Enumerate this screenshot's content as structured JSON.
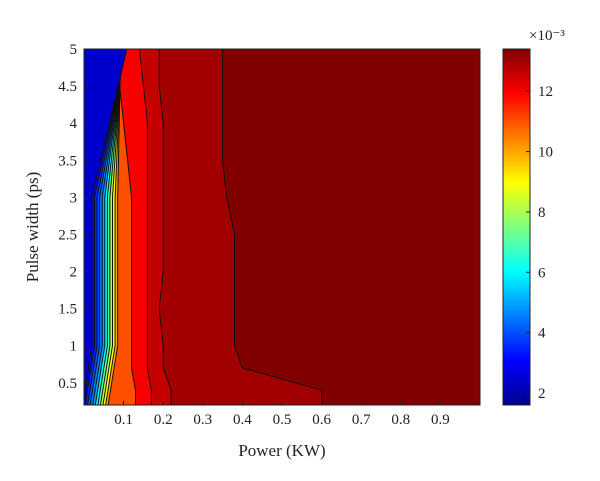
{
  "chart_data": {
    "type": "heatmap",
    "subtype": "filled-contour",
    "xlabel": "Power (KW)",
    "ylabel": "Pulse width (ps)",
    "xlim": [
      0,
      1.0
    ],
    "ylim": [
      0.2,
      5
    ],
    "x_ticks": [
      "0.1",
      "0.2",
      "0.3",
      "0.4",
      "0.5",
      "0.6",
      "0.7",
      "0.8",
      "0.9"
    ],
    "y_ticks": [
      "0.5",
      "1",
      "1.5",
      "2",
      "2.5",
      "3",
      "3.5",
      "4",
      "4.5",
      "5"
    ],
    "colorbar": {
      "label": "×10⁻³",
      "min": 1.6,
      "max": 13.4,
      "ticks": [
        "2",
        "4",
        "6",
        "8",
        "10",
        "12"
      ],
      "colormap": "jet"
    },
    "contour_levels": [
      13.0,
      12.6,
      12.0,
      11.0,
      10.0,
      9.0,
      8.0,
      7.0,
      6.0,
      5.0,
      4.5,
      4.0,
      3.5,
      3.0,
      2.5
    ],
    "contour_boundaries_x_at_pulse_width": {
      "pulse_width": [
        0.2,
        0.4,
        0.7,
        1.0,
        1.5,
        2.0,
        2.5,
        3.0,
        3.5,
        4.0,
        4.5,
        5.0
      ],
      "level_13.0": [
        0.6,
        0.6,
        0.4,
        0.38,
        0.38,
        0.38,
        0.38,
        0.36,
        0.35,
        0.35,
        0.35,
        0.35
      ],
      "level_12.6": [
        0.22,
        0.22,
        0.2,
        0.2,
        0.19,
        0.2,
        0.2,
        0.2,
        0.2,
        0.2,
        0.19,
        0.19
      ],
      "level_12.0": [
        0.17,
        0.17,
        0.16,
        0.16,
        0.16,
        0.16,
        0.16,
        0.16,
        0.16,
        0.16,
        0.15,
        0.14
      ],
      "level_11.0": [
        0.13,
        0.13,
        0.12,
        0.12,
        0.12,
        0.12,
        0.12,
        0.12,
        0.11,
        0.1,
        0.09,
        0.09
      ]
    }
  }
}
